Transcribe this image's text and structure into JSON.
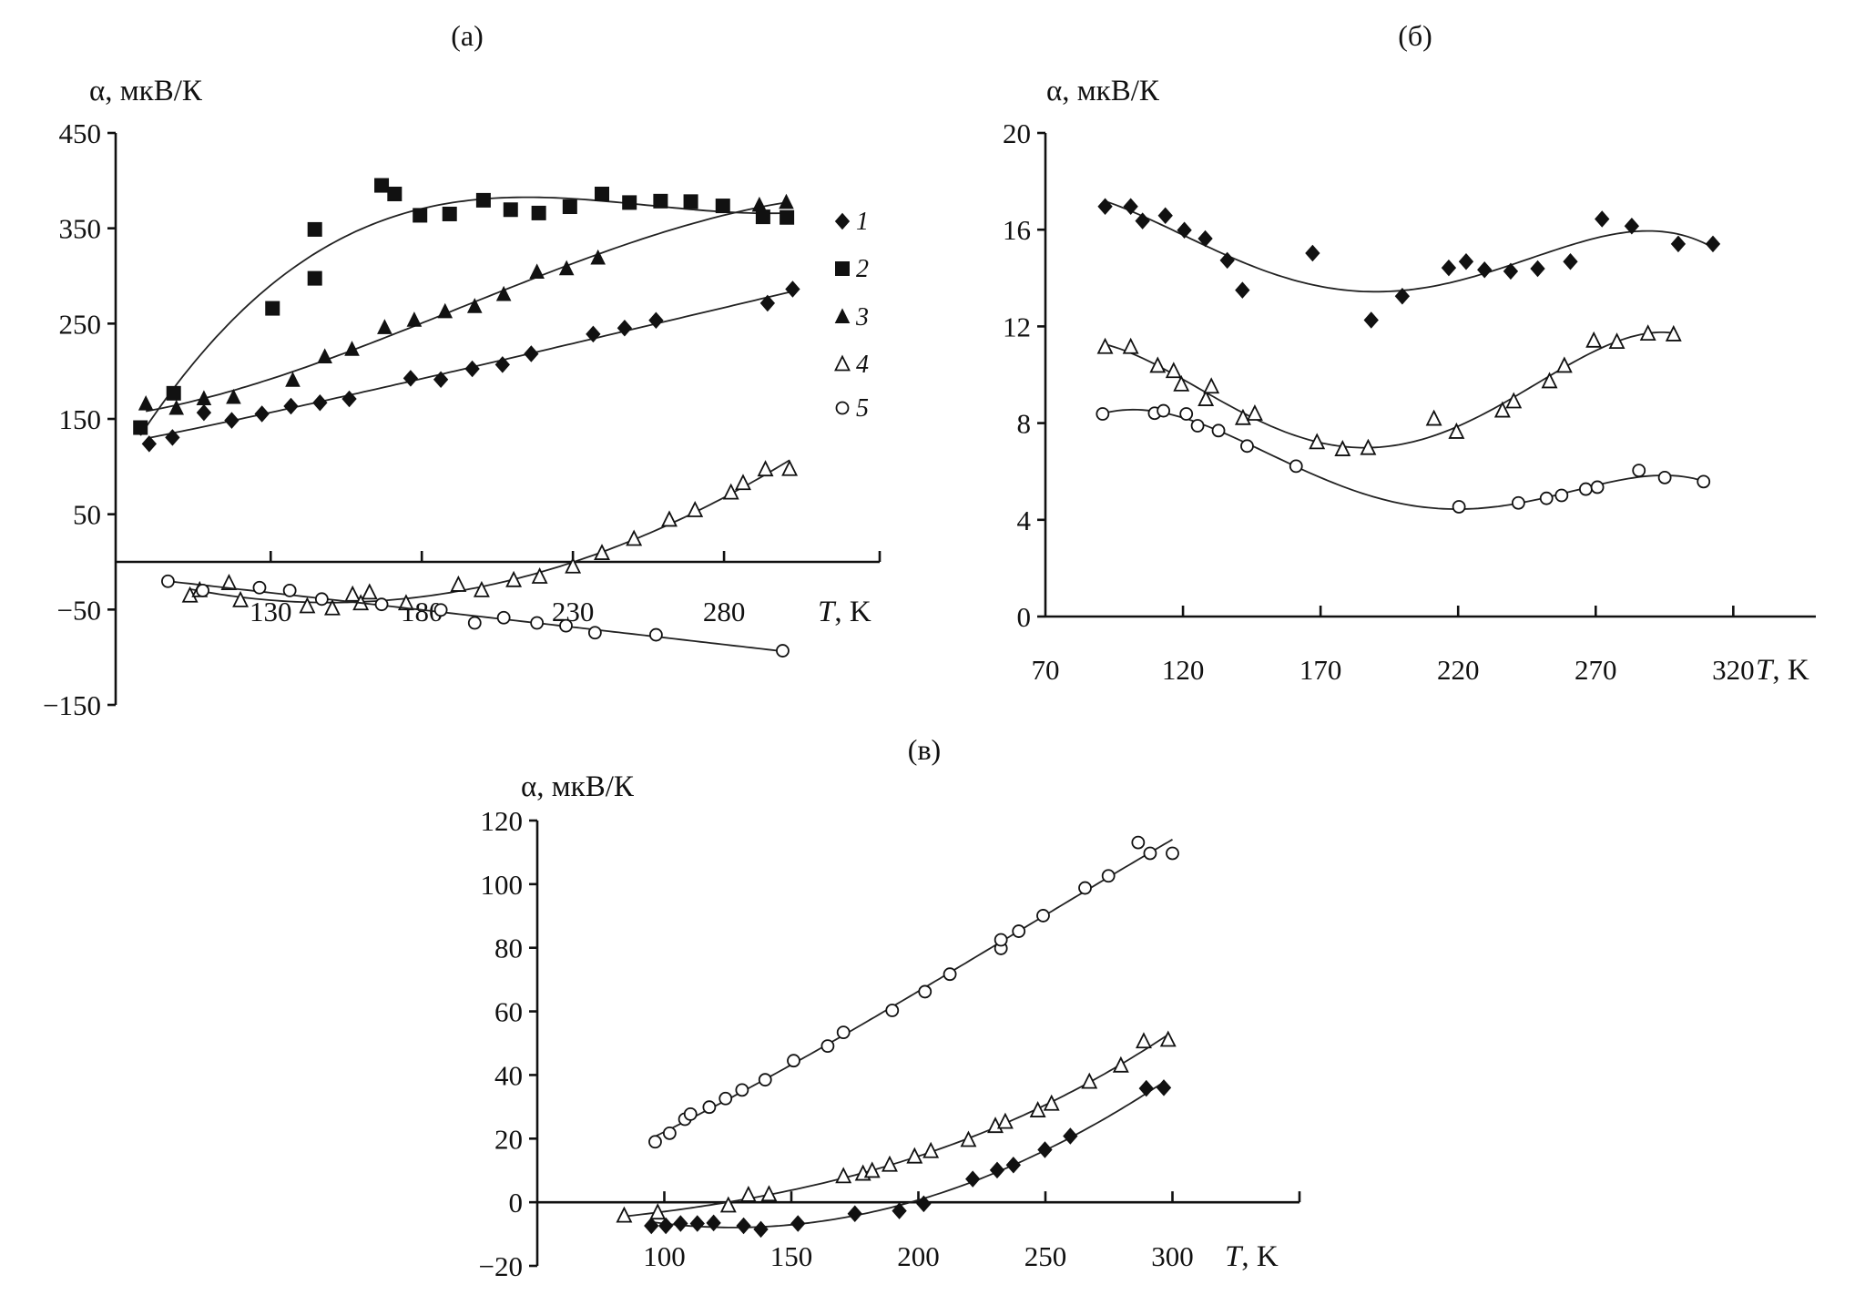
{
  "chart_data": [
    {
      "panel_label": "(а)",
      "type": "scatter",
      "ylabel": "α, мкВ/К",
      "xlabel_symbol": "T",
      "xlabel_unit": ", K",
      "xlim": [
        78.7,
        331.5
      ],
      "ylim": [
        -150,
        450
      ],
      "xticks": [
        130,
        180,
        230,
        280
      ],
      "yticks": [
        450,
        350,
        250,
        150,
        50,
        -50,
        -150
      ],
      "ytick_labels": [
        "450",
        "350",
        "250",
        "150",
        "50",
        "−50",
        "−150"
      ],
      "grid": false,
      "legend": {
        "placement": "right",
        "entries": [
          "1",
          "2",
          "3",
          "4",
          "5"
        ]
      },
      "series": [
        {
          "name": "1",
          "marker": "diamond-filled",
          "trendline": true,
          "points": [
            [
              89.8,
              123.8
            ],
            [
              97.5,
              130.5
            ],
            [
              107.9,
              156.6
            ],
            [
              117.1,
              148.5
            ],
            [
              127.1,
              155.3
            ],
            [
              136.7,
              163.4
            ],
            [
              146.3,
              167
            ],
            [
              156,
              171
            ],
            [
              176.3,
              192.6
            ],
            [
              186.3,
              191.3
            ],
            [
              196.7,
              202.5
            ],
            [
              206.7,
              207
            ],
            [
              216.2,
              218.3
            ],
            [
              236.7,
              239
            ],
            [
              247.1,
              245.3
            ],
            [
              257.5,
              253.4
            ],
            [
              294.4,
              271.4
            ],
            [
              302.7,
              286.2
            ]
          ]
        },
        {
          "name": "2",
          "marker": "square-filled",
          "trendline": true,
          "points": [
            [
              86.9,
              140.9
            ],
            [
              97.9,
              176.9
            ],
            [
              130.6,
              266
            ],
            [
              144.6,
              297.5
            ],
            [
              144.6,
              348.8
            ],
            [
              166.7,
              395
            ],
            [
              171,
              386
            ],
            [
              179.4,
              363.6
            ],
            [
              189.2,
              365
            ],
            [
              200.4,
              379.4
            ],
            [
              209.4,
              369.5
            ],
            [
              218.7,
              366
            ],
            [
              229,
              372.6
            ],
            [
              239.6,
              386
            ],
            [
              248.7,
              377
            ],
            [
              259,
              378.5
            ],
            [
              269,
              378
            ],
            [
              279.6,
              373.5
            ],
            [
              292.9,
              362
            ],
            [
              300.8,
              361.4
            ]
          ]
        },
        {
          "name": "3",
          "marker": "triangle-filled",
          "trendline": true,
          "points": [
            [
              88.7,
              165.6
            ],
            [
              98.8,
              161
            ],
            [
              107.9,
              171
            ],
            [
              117.7,
              172.4
            ],
            [
              137.3,
              190.4
            ],
            [
              147.9,
              215
            ],
            [
              156.9,
              222.8
            ],
            [
              167.7,
              245.7
            ],
            [
              177.5,
              253.4
            ],
            [
              187.7,
              262.4
            ],
            [
              197.5,
              267.8
            ],
            [
              207.1,
              280.4
            ],
            [
              218.1,
              303.8
            ],
            [
              227.9,
              307.4
            ],
            [
              238.3,
              318.6
            ],
            [
              291.7,
              374
            ],
            [
              300.6,
              377
            ]
          ]
        },
        {
          "name": "4",
          "marker": "triangle-open",
          "trendline": true,
          "points": [
            [
              103.3,
              -35.6
            ],
            [
              106.5,
              -30
            ],
            [
              116.2,
              -22.5
            ],
            [
              120,
              -40.5
            ],
            [
              142.1,
              -46.8
            ],
            [
              150.4,
              -49
            ],
            [
              157.1,
              -34.7
            ],
            [
              159.8,
              -43.7
            ],
            [
              162.7,
              -32.4
            ],
            [
              174.8,
              -43.7
            ],
            [
              192.1,
              -24.3
            ],
            [
              199.8,
              -30
            ],
            [
              210.4,
              -19.4
            ],
            [
              219,
              -15.8
            ],
            [
              230,
              -5
            ],
            [
              239.6,
              9
            ],
            [
              250.2,
              23.9
            ],
            [
              261.9,
              44
            ],
            [
              270.4,
              54
            ],
            [
              282.3,
              72.5
            ],
            [
              286.3,
              82.4
            ],
            [
              293.7,
              96.8
            ],
            [
              301.7,
              97.2
            ]
          ]
        },
        {
          "name": "5",
          "marker": "circle-open",
          "trendline": true,
          "points": [
            [
              96,
              -20.3
            ],
            [
              107.5,
              -30
            ],
            [
              126.3,
              -27
            ],
            [
              136.3,
              -30
            ],
            [
              146.9,
              -39
            ],
            [
              166.7,
              -44.6
            ],
            [
              186.3,
              -50.4
            ],
            [
              197.5,
              -64
            ],
            [
              207.1,
              -58.5
            ],
            [
              218.1,
              -64
            ],
            [
              227.7,
              -67
            ],
            [
              237.3,
              -74.3
            ],
            [
              257.5,
              -76.5
            ],
            [
              299.4,
              -93.2
            ]
          ]
        }
      ]
    },
    {
      "panel_label": "(б)",
      "type": "scatter",
      "ylabel": "α, мкВ/К",
      "xlabel_symbol": "T",
      "xlabel_unit": ", K",
      "xlim": [
        70,
        350
      ],
      "ylim": [
        0,
        20
      ],
      "xticks": [
        70,
        120,
        170,
        220,
        270,
        320
      ],
      "yticks": [
        20,
        16,
        12,
        8,
        4,
        0
      ],
      "ytick_labels": [
        "20",
        "16",
        "12",
        "8",
        "4",
        "0"
      ],
      "grid": false,
      "series": [
        {
          "marker": "diamond-filled",
          "trendline": true,
          "points": [
            [
              91.7,
              16.96
            ],
            [
              101,
              16.96
            ],
            [
              105.3,
              16.36
            ],
            [
              113.6,
              16.58
            ],
            [
              120.5,
              15.98
            ],
            [
              128.1,
              15.63
            ],
            [
              136.1,
              14.73
            ],
            [
              141.6,
              13.5
            ],
            [
              167.1,
              15.03
            ],
            [
              188.4,
              12.26
            ],
            [
              199.7,
              13.25
            ],
            [
              216.6,
              14.42
            ],
            [
              222.9,
              14.68
            ],
            [
              229.6,
              14.34
            ],
            [
              239.1,
              14.28
            ],
            [
              248.9,
              14.39
            ],
            [
              260.8,
              14.68
            ],
            [
              272.3,
              16.44
            ],
            [
              283.1,
              16.15
            ],
            [
              300,
              15.41
            ],
            [
              312.6,
              15.41
            ]
          ]
        },
        {
          "marker": "triangle-open",
          "trendline": true,
          "points": [
            [
              91.7,
              11.14
            ],
            [
              101,
              11.14
            ],
            [
              110.8,
              10.36
            ],
            [
              116.6,
              10.14
            ],
            [
              119.4,
              9.59
            ],
            [
              128.3,
              8.98
            ],
            [
              130.3,
              9.5
            ],
            [
              141.8,
              8.2
            ],
            [
              146.1,
              8.38
            ],
            [
              168.7,
              7.2
            ],
            [
              178,
              6.91
            ],
            [
              187.3,
              6.96
            ],
            [
              211.2,
              8.17
            ],
            [
              219.4,
              7.63
            ],
            [
              236.1,
              8.51
            ],
            [
              240.2,
              8.89
            ],
            [
              253.2,
              9.72
            ],
            [
              258.6,
              10.36
            ],
            [
              269.3,
              11.4
            ],
            [
              277.7,
              11.35
            ],
            [
              289,
              11.69
            ],
            [
              298.3,
              11.66
            ]
          ]
        },
        {
          "marker": "circle-open",
          "trendline": true,
          "points": [
            [
              90.8,
              8.38
            ],
            [
              109.7,
              8.41
            ],
            [
              112.9,
              8.51
            ],
            [
              121.2,
              8.38
            ],
            [
              125.3,
              7.89
            ],
            [
              132.9,
              7.69
            ],
            [
              143.3,
              7.05
            ],
            [
              161.1,
              6.22
            ],
            [
              220.3,
              4.54
            ],
            [
              241.9,
              4.7
            ],
            [
              252.1,
              4.89
            ],
            [
              257.6,
              5.01
            ],
            [
              266.4,
              5.27
            ],
            [
              270.6,
              5.35
            ],
            [
              285.7,
              6.04
            ],
            [
              295.1,
              5.75
            ],
            [
              309.2,
              5.58
            ]
          ]
        }
      ]
    },
    {
      "panel_label": "(в)",
      "type": "scatter",
      "ylabel": "α, мкВ/К",
      "xlabel_symbol": "T",
      "xlabel_unit": ", K",
      "xlim": [
        50,
        350
      ],
      "ylim": [
        -20,
        120
      ],
      "xticks": [
        100,
        150,
        200,
        250,
        300
      ],
      "yticks": [
        120,
        100,
        80,
        60,
        40,
        20,
        0,
        -20
      ],
      "ytick_labels": [
        "120",
        "100",
        "80",
        "60",
        "40",
        "20",
        "0",
        "−20"
      ],
      "grid": false,
      "series": [
        {
          "marker": "circle-open",
          "trendline": true,
          "points": [
            [
              96.4,
              19
            ],
            [
              102.1,
              21.7
            ],
            [
              108.1,
              26.1
            ],
            [
              110.3,
              27.7
            ],
            [
              117.7,
              29.9
            ],
            [
              124.1,
              32.6
            ],
            [
              130.6,
              35.3
            ],
            [
              139.7,
              38.5
            ],
            [
              150.9,
              44.5
            ],
            [
              164.3,
              49.1
            ],
            [
              170.5,
              53.4
            ],
            [
              189.7,
              60.3
            ],
            [
              202.6,
              66.2
            ],
            [
              212.4,
              71.7
            ],
            [
              232.5,
              79.8
            ],
            [
              232.5,
              82.5
            ],
            [
              239.5,
              85.2
            ],
            [
              249.1,
              90.1
            ],
            [
              265.6,
              98.8
            ],
            [
              274.8,
              102.6
            ],
            [
              286.5,
              113.1
            ],
            [
              291.2,
              109.7
            ],
            [
              300,
              109.7
            ]
          ]
        },
        {
          "marker": "triangle-open",
          "trendline": true,
          "points": [
            [
              84.2,
              -4.3
            ],
            [
              97.4,
              -3.3
            ],
            [
              125.2,
              -1.1
            ],
            [
              133.1,
              2.2
            ],
            [
              141.2,
              2.4
            ],
            [
              170.5,
              8.1
            ],
            [
              178.2,
              8.9
            ],
            [
              181.8,
              9.8
            ],
            [
              188.7,
              11.7
            ],
            [
              198.5,
              14.3
            ],
            [
              204.9,
              16
            ],
            [
              219.7,
              19.5
            ],
            [
              230.3,
              23.9
            ],
            [
              234.2,
              25.2
            ],
            [
              247,
              28.8
            ],
            [
              252.4,
              30.9
            ],
            [
              267.3,
              37.8
            ],
            [
              279.7,
              42.9
            ],
            [
              288.7,
              50.5
            ],
            [
              298.3,
              51
            ]
          ]
        },
        {
          "marker": "diamond-filled",
          "trendline": true,
          "points": [
            [
              94.9,
              -7.4
            ],
            [
              100.6,
              -7.4
            ],
            [
              106.4,
              -6.7
            ],
            [
              113,
              -6.7
            ],
            [
              119.4,
              -6.5
            ],
            [
              131.2,
              -7.4
            ],
            [
              138,
              -8.5
            ],
            [
              152.6,
              -6.7
            ],
            [
              175,
              -3.6
            ],
            [
              192.5,
              -2.7
            ],
            [
              202.1,
              -0.5
            ],
            [
              221.4,
              7.3
            ],
            [
              231,
              10.1
            ],
            [
              237.4,
              11.7
            ],
            [
              249.8,
              16.5
            ],
            [
              259.8,
              20.8
            ],
            [
              289.7,
              35.8
            ],
            [
              296.6,
              36
            ]
          ]
        }
      ]
    }
  ],
  "colors": {
    "ink": "#111111",
    "background": "#ffffff"
  }
}
